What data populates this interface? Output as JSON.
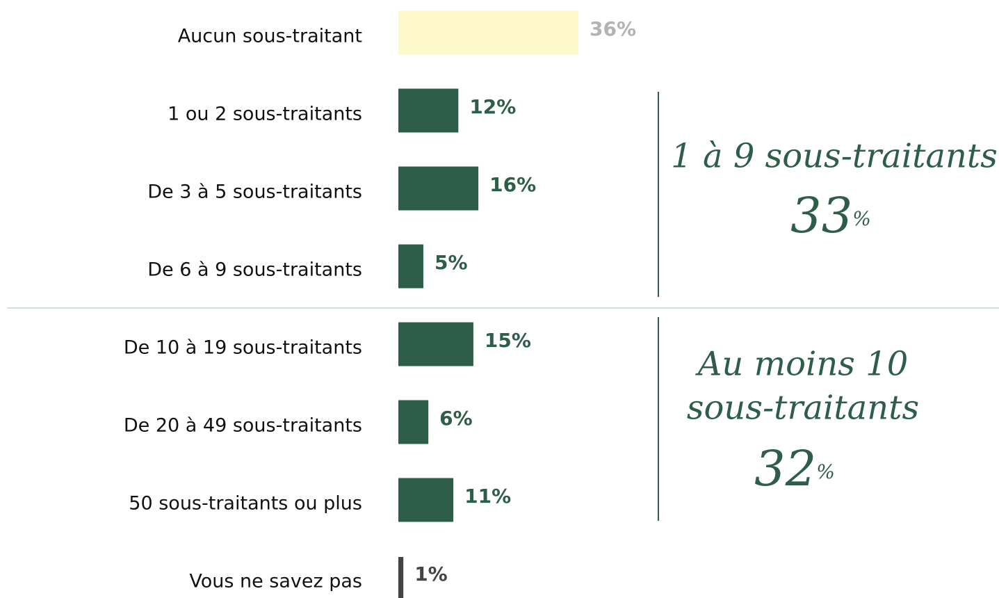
{
  "chart_data": {
    "type": "bar",
    "orientation": "horizontal",
    "categories": [
      "Aucun sous-traitant",
      "1 ou 2 sous-traitants",
      "De 3 à 5 sous-traitants",
      "De 6 à 9 sous-traitants",
      "De 10 à 19 sous-traitants",
      "De 20 à 49 sous-traitants",
      "50 sous-traitants ou plus",
      "Vous ne savez pas"
    ],
    "values": [
      36,
      12,
      16,
      5,
      15,
      6,
      11,
      1
    ],
    "value_labels": [
      "36%",
      "12%",
      "16%",
      "5%",
      "15%",
      "6%",
      "11%",
      "1%"
    ],
    "colors": [
      "#fdf9cb",
      "#2e5e4a",
      "#2e5e4a",
      "#2e5e4a",
      "#2e5e4a",
      "#2e5e4a",
      "#2e5e4a",
      "#444444"
    ],
    "label_colors": [
      "#b3b3b3",
      "#2e5e4a",
      "#2e5e4a",
      "#2e5e4a",
      "#2e5e4a",
      "#2e5e4a",
      "#2e5e4a",
      "#444444"
    ],
    "annotations": [
      {
        "lines": [
          "1 à 9 sous-traitants"
        ],
        "value": 33,
        "unit": "%"
      },
      {
        "lines": [
          "Au moins 10",
          "sous-traitants"
        ],
        "value": 32,
        "unit": "%"
      }
    ]
  }
}
